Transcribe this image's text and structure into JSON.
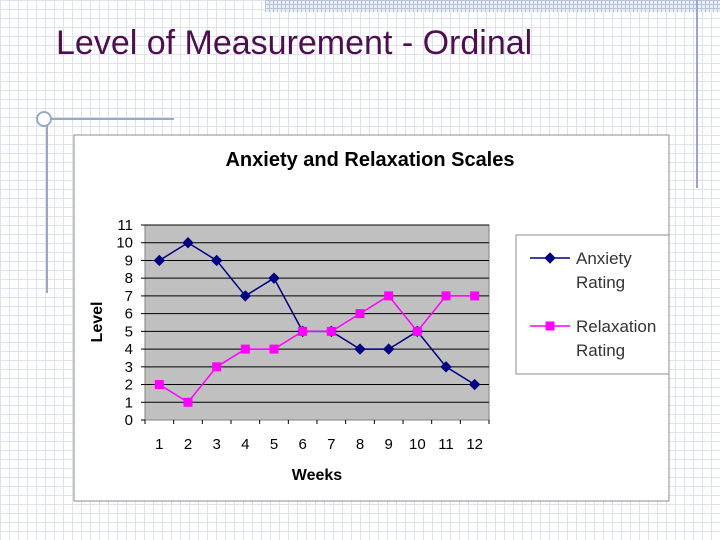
{
  "slide": {
    "title": "Level of Measurement - Ordinal"
  },
  "colors": {
    "title": "#4d0f4f",
    "plot_background": "#c0c0c0",
    "anxiety": "#000080",
    "relaxation": "#ff00ff"
  },
  "chart_data": {
    "type": "line",
    "title": "Anxiety and Relaxation Scales",
    "xlabel": "Weeks",
    "ylabel": "Level",
    "categories": [
      "1",
      "2",
      "3",
      "4",
      "5",
      "6",
      "7",
      "8",
      "9",
      "10",
      "11",
      "12"
    ],
    "yticks": [
      "0",
      "1",
      "2",
      "3",
      "4",
      "5",
      "6",
      "7",
      "8",
      "9",
      "10",
      "11"
    ],
    "ylim": [
      0,
      11
    ],
    "grid": true,
    "legend_position": "right",
    "series": [
      {
        "name": "Anxiety Rating",
        "legend_lines": [
          "Anxiety",
          "Rating"
        ],
        "color": "#000080",
        "marker": "diamond",
        "values": [
          9,
          10,
          9,
          7,
          8,
          5,
          5,
          4,
          4,
          5,
          3,
          2
        ]
      },
      {
        "name": "Relaxation Rating",
        "legend_lines": [
          "Relaxation",
          "Rating"
        ],
        "color": "#ff00ff",
        "marker": "square",
        "values": [
          2,
          1,
          3,
          4,
          4,
          5,
          5,
          6,
          7,
          5,
          7,
          7
        ]
      }
    ]
  }
}
